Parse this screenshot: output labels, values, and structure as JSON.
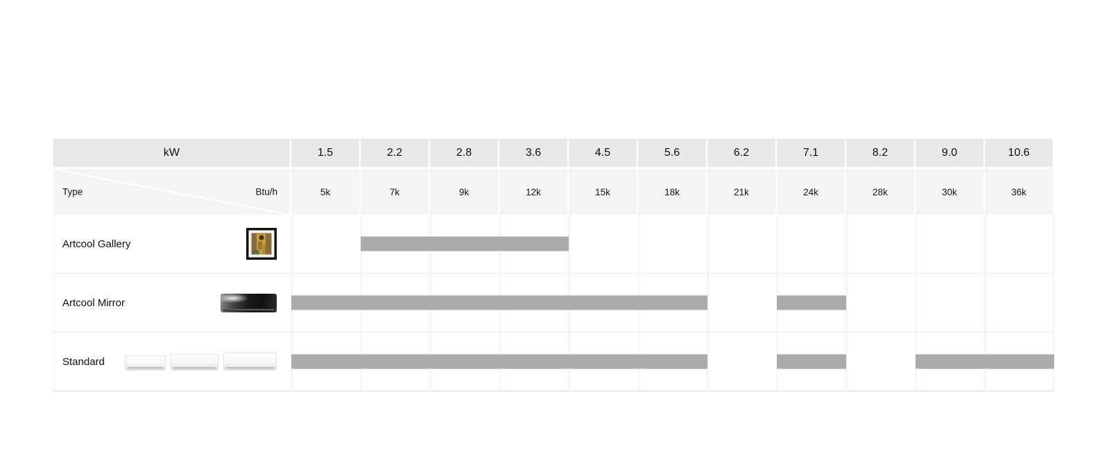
{
  "chart_data": {
    "type": "table",
    "description": "Air conditioner model lineup by cooling capacity; gray bars mark available capacities",
    "corner": {
      "kw_label": "kW",
      "type_label": "Type",
      "btuh_label": "Btu/h"
    },
    "columns_kw": [
      "1.5",
      "2.2",
      "2.8",
      "3.6",
      "4.5",
      "5.6",
      "6.2",
      "7.1",
      "8.2",
      "9.0",
      "10.6"
    ],
    "columns_btuh": [
      "5k",
      "7k",
      "9k",
      "12k",
      "15k",
      "18k",
      "21k",
      "24k",
      "28k",
      "30k",
      "36k"
    ],
    "rows": [
      {
        "label": "Artcool Gallery",
        "image": "gallery",
        "ranges": [
          {
            "from": "2.2",
            "to": "3.6"
          }
        ]
      },
      {
        "label": "Artcool Mirror",
        "image": "mirror",
        "ranges": [
          {
            "from": "1.5",
            "to": "5.6"
          },
          {
            "from": "7.1",
            "to": "7.1"
          }
        ]
      },
      {
        "label": "Standard",
        "image": "standard",
        "ranges": [
          {
            "from": "1.5",
            "to": "5.6"
          },
          {
            "from": "7.1",
            "to": "7.1"
          },
          {
            "from": "9.0",
            "to": "10.6"
          }
        ]
      }
    ],
    "colors": {
      "bar": "#ababab",
      "header_kw_bg": "#e9e9e9",
      "header_btuh_bg": "#f4f4f4",
      "grid_line": "#ececec"
    },
    "layout": {
      "legend": "none",
      "grid": "on"
    }
  }
}
